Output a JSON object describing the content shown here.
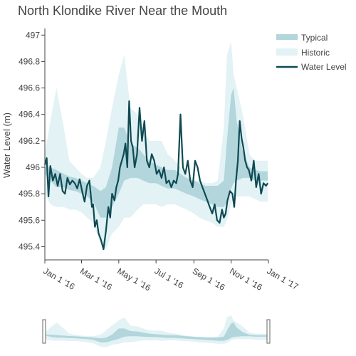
{
  "chart_data": {
    "type": "line",
    "title": "North Klondike River Near the Mouth",
    "ylabel": "Water Level (m)",
    "xlabel": "",
    "xlim": [
      "2016-01-01",
      "2017-01-01"
    ],
    "ylim": [
      495.3,
      497.05
    ],
    "y_ticks": [
      "495.4",
      "495.6",
      "495.8",
      "496",
      "496.2",
      "496.4",
      "496.6",
      "496.8",
      "497"
    ],
    "x_ticks": [
      {
        "label": "Jan 1 '16",
        "date": "2016-01-01"
      },
      {
        "label": "Mar 1 '16",
        "date": "2016-03-01"
      },
      {
        "label": "May 1 '16",
        "date": "2016-05-01"
      },
      {
        "label": "Jul 1 '16",
        "date": "2016-07-01"
      },
      {
        "label": "Sep 1 '16",
        "date": "2016-09-01"
      },
      {
        "label": "Nov 1 '16",
        "date": "2016-11-01"
      },
      {
        "label": "Jan 1 '17",
        "date": "2017-01-01"
      }
    ],
    "grid": false,
    "legend_position": "top-right",
    "colors": {
      "typical": "#b3d5dc",
      "historic": "#e2f2f5",
      "water_level": "#0e4a52"
    },
    "series": [
      {
        "name": "Historic",
        "kind": "band",
        "x": [
          "2016-01-01",
          "2016-01-10",
          "2016-01-20",
          "2016-02-01",
          "2016-02-10",
          "2016-02-20",
          "2016-03-01",
          "2016-03-10",
          "2016-03-20",
          "2016-04-01",
          "2016-04-10",
          "2016-04-20",
          "2016-05-01",
          "2016-05-10",
          "2016-05-20",
          "2016-06-01",
          "2016-06-10",
          "2016-06-20",
          "2016-07-01",
          "2016-07-10",
          "2016-07-20",
          "2016-08-01",
          "2016-08-10",
          "2016-08-20",
          "2016-09-01",
          "2016-09-10",
          "2016-09-20",
          "2016-10-01",
          "2016-10-10",
          "2016-10-20",
          "2016-10-25",
          "2016-11-01",
          "2016-11-05",
          "2016-11-10",
          "2016-11-20",
          "2016-12-01",
          "2016-12-10",
          "2016-12-20",
          "2016-12-31"
        ],
        "low": [
          495.8,
          495.72,
          495.7,
          495.7,
          495.68,
          495.68,
          495.66,
          495.62,
          495.58,
          495.42,
          495.38,
          495.5,
          495.55,
          495.62,
          495.62,
          495.68,
          495.72,
          495.72,
          495.72,
          495.7,
          495.72,
          495.72,
          495.7,
          495.68,
          495.65,
          495.62,
          495.6,
          495.58,
          495.55,
          495.55,
          495.6,
          495.72,
          495.76,
          495.78,
          495.78,
          495.78,
          495.76,
          495.74,
          495.74
        ],
        "high": [
          496.1,
          496.35,
          496.6,
          496.3,
          496.05,
          496.0,
          495.95,
          495.92,
          495.92,
          496.0,
          496.2,
          496.45,
          496.7,
          496.85,
          496.45,
          496.4,
          496.3,
          496.2,
          496.2,
          496.2,
          496.1,
          496.05,
          496.0,
          495.95,
          495.9,
          495.9,
          495.88,
          495.88,
          495.9,
          496.3,
          496.85,
          496.95,
          496.7,
          496.6,
          496.4,
          496.1,
          496.05,
          496.05,
          496.05
        ]
      },
      {
        "name": "Typical",
        "kind": "band",
        "x": [
          "2016-01-01",
          "2016-01-10",
          "2016-01-20",
          "2016-02-01",
          "2016-02-10",
          "2016-02-20",
          "2016-03-01",
          "2016-03-10",
          "2016-03-20",
          "2016-04-01",
          "2016-04-10",
          "2016-04-20",
          "2016-05-01",
          "2016-05-10",
          "2016-05-20",
          "2016-06-01",
          "2016-06-10",
          "2016-06-20",
          "2016-07-01",
          "2016-07-10",
          "2016-07-20",
          "2016-08-01",
          "2016-08-10",
          "2016-08-20",
          "2016-09-01",
          "2016-09-10",
          "2016-09-20",
          "2016-10-01",
          "2016-10-10",
          "2016-10-20",
          "2016-10-25",
          "2016-11-01",
          "2016-11-05",
          "2016-11-10",
          "2016-11-20",
          "2016-12-01",
          "2016-12-10",
          "2016-12-20",
          "2016-12-31"
        ],
        "low": [
          495.95,
          495.9,
          495.85,
          495.85,
          495.83,
          495.82,
          495.8,
          495.78,
          495.74,
          495.62,
          495.62,
          495.7,
          495.8,
          495.9,
          495.92,
          495.92,
          495.9,
          495.88,
          495.88,
          495.86,
          495.84,
          495.84,
          495.82,
          495.8,
          495.78,
          495.76,
          495.74,
          495.72,
          495.7,
          495.7,
          495.74,
          495.84,
          495.88,
          495.9,
          495.92,
          495.92,
          495.9,
          495.9,
          495.9
        ],
        "high": [
          496.0,
          496.0,
          495.98,
          495.95,
          495.93,
          495.92,
          495.9,
          495.88,
          495.86,
          495.82,
          495.85,
          496.0,
          496.3,
          496.3,
          496.18,
          496.15,
          496.1,
          496.05,
          496.02,
          496.0,
          495.98,
          495.98,
          495.95,
          495.92,
          495.9,
          495.88,
          495.86,
          495.86,
          495.86,
          495.9,
          496.2,
          496.55,
          496.6,
          496.35,
          496.12,
          496.0,
          495.98,
          495.97,
          495.97
        ]
      },
      {
        "name": "Water Level",
        "kind": "line",
        "x": [
          "2016-01-01",
          "2016-01-04",
          "2016-01-07",
          "2016-01-10",
          "2016-01-14",
          "2016-01-18",
          "2016-01-22",
          "2016-01-26",
          "2016-01-30",
          "2016-02-03",
          "2016-02-07",
          "2016-02-11",
          "2016-02-15",
          "2016-02-19",
          "2016-02-23",
          "2016-02-27",
          "2016-03-02",
          "2016-03-06",
          "2016-03-10",
          "2016-03-14",
          "2016-03-18",
          "2016-03-20",
          "2016-03-23",
          "2016-03-26",
          "2016-03-29",
          "2016-04-02",
          "2016-04-06",
          "2016-04-10",
          "2016-04-14",
          "2016-04-17",
          "2016-04-20",
          "2016-04-24",
          "2016-04-27",
          "2016-04-30",
          "2016-05-03",
          "2016-05-06",
          "2016-05-09",
          "2016-05-12",
          "2016-05-15",
          "2016-05-18",
          "2016-05-21",
          "2016-05-24",
          "2016-05-27",
          "2016-05-31",
          "2016-06-04",
          "2016-06-08",
          "2016-06-12",
          "2016-06-16",
          "2016-06-20",
          "2016-06-24",
          "2016-06-28",
          "2016-07-02",
          "2016-07-06",
          "2016-07-10",
          "2016-07-14",
          "2016-07-18",
          "2016-07-22",
          "2016-07-26",
          "2016-07-30",
          "2016-08-03",
          "2016-08-06",
          "2016-08-10",
          "2016-08-14",
          "2016-08-18",
          "2016-08-22",
          "2016-08-26",
          "2016-08-30",
          "2016-09-03",
          "2016-09-07",
          "2016-09-11",
          "2016-09-15",
          "2016-09-19",
          "2016-09-23",
          "2016-09-27",
          "2016-10-01",
          "2016-10-05",
          "2016-10-09",
          "2016-10-13",
          "2016-10-17",
          "2016-10-20",
          "2016-10-23",
          "2016-10-26",
          "2016-10-30",
          "2016-11-03",
          "2016-11-06",
          "2016-11-09",
          "2016-11-12",
          "2016-11-15",
          "2016-11-18",
          "2016-11-21",
          "2016-11-24",
          "2016-11-27",
          "2016-11-30",
          "2016-12-04",
          "2016-12-08",
          "2016-12-12",
          "2016-12-16",
          "2016-12-20",
          "2016-12-24",
          "2016-12-28",
          "2016-12-31"
        ],
        "y": [
          496.02,
          496.07,
          495.78,
          496.01,
          495.9,
          495.95,
          495.86,
          495.95,
          495.82,
          495.8,
          495.92,
          495.87,
          495.9,
          495.88,
          495.84,
          495.91,
          495.82,
          495.74,
          495.86,
          495.9,
          495.7,
          495.72,
          495.55,
          495.6,
          495.5,
          495.45,
          495.38,
          495.52,
          495.7,
          495.62,
          495.8,
          495.75,
          495.85,
          495.9,
          496.0,
          496.05,
          496.1,
          496.18,
          496.0,
          496.5,
          496.2,
          496.15,
          496.0,
          496.1,
          496.45,
          496.2,
          496.35,
          496.05,
          496.0,
          496.1,
          496.05,
          495.95,
          495.98,
          495.92,
          496.0,
          495.88,
          495.9,
          495.85,
          495.9,
          495.88,
          495.95,
          496.4,
          496.0,
          495.95,
          496.05,
          495.9,
          495.85,
          496.05,
          496.0,
          495.9,
          495.85,
          495.8,
          495.75,
          495.7,
          495.65,
          495.72,
          495.6,
          495.58,
          495.68,
          495.62,
          495.65,
          495.75,
          495.82,
          495.8,
          495.7,
          495.9,
          496.05,
          496.35,
          496.22,
          496.15,
          496.05,
          496.0,
          495.98,
          495.9,
          496.05,
          495.85,
          495.95,
          495.8,
          495.88,
          495.86,
          495.88
        ]
      }
    ],
    "range_slider": true
  }
}
